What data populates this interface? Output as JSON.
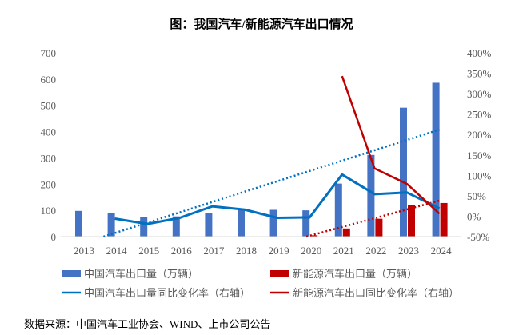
{
  "chart_data": {
    "type": "bar",
    "title": "图：我国汽车/新能源汽车出口情况",
    "categories": [
      "2013",
      "2014",
      "2015",
      "2016",
      "2017",
      "2018",
      "2019",
      "2020",
      "2021",
      "2022",
      "2023",
      "2024"
    ],
    "left_axis": {
      "ylim": [
        0,
        700
      ],
      "ticks": [
        "0",
        "100",
        "200",
        "300",
        "400",
        "500",
        "600",
        "700"
      ]
    },
    "right_axis": {
      "ylim": [
        -50,
        400
      ],
      "ticks": [
        "-50%",
        "0%",
        "50%",
        "100%",
        "150%",
        "200%",
        "250%",
        "300%",
        "350%",
        "400%"
      ]
    },
    "series": [
      {
        "name": "中国汽车出口量（万辆）",
        "type": "bar",
        "axis": "left",
        "color": "#4472C4",
        "values": [
          98,
          91,
          73,
          77,
          89,
          104,
          102,
          100,
          202,
          311,
          491,
          586
        ]
      },
      {
        "name": "新能源汽车出口量（万辆）",
        "type": "bar",
        "axis": "left",
        "color": "#C00000",
        "values": [
          null,
          null,
          null,
          null,
          null,
          null,
          null,
          5,
          31,
          68,
          120,
          128
        ]
      },
      {
        "name": "中国汽车出口量同比变化率（右轴）",
        "type": "line",
        "axis": "right",
        "color": "#0070C0",
        "values": [
          null,
          -6,
          -19,
          -4,
          24,
          16,
          -4,
          -3,
          102,
          54,
          58,
          19
        ]
      },
      {
        "name": "新能源汽车出口同比变化率（右轴）",
        "type": "line",
        "axis": "right",
        "color": "#C00000",
        "values": [
          null,
          null,
          null,
          null,
          null,
          null,
          null,
          null,
          343,
          117,
          79,
          6
        ]
      }
    ],
    "trendlines": [
      {
        "color": "#0070C0",
        "from": {
          "x": 2013.65,
          "y": -50
        },
        "to": {
          "x": 2024,
          "y": 212
        }
      },
      {
        "color": "#C00000",
        "from": {
          "x": 2019.9,
          "y": -50
        },
        "to": {
          "x": 2024,
          "y": 38
        }
      }
    ],
    "grid": false,
    "legend": "bottom"
  },
  "source": "数据来源：中国汽车工业协会、WIND、上市公司公告"
}
